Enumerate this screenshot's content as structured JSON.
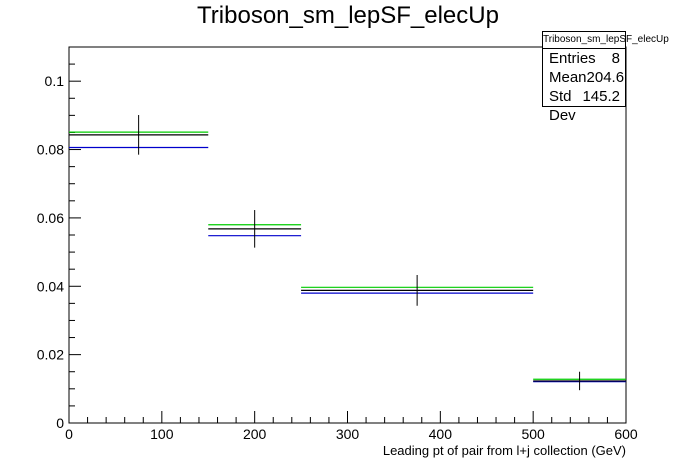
{
  "chart_data": {
    "type": "histogram",
    "title": "Triboson_sm_lepSF_elecUp",
    "xlabel": "Leading pt of pair from l+j collection (GeV)",
    "ylabel": "",
    "xlim": [
      0,
      600
    ],
    "ylim": [
      0,
      0.11
    ],
    "x_ticks": [
      "0",
      "100",
      "200",
      "300",
      "400",
      "500",
      "600"
    ],
    "y_ticks": [
      "0",
      "0.02",
      "0.04",
      "0.06",
      "0.08",
      "0.1"
    ],
    "bin_edges": [
      0,
      150,
      250,
      500,
      600
    ],
    "series": [
      {
        "values": [
          0.0843,
          0.0568,
          0.0388,
          0.0123
        ],
        "errors": [
          0.0058,
          0.0055,
          0.0045,
          0.0027
        ],
        "color": "#000000"
      },
      {
        "values": [
          0.0851,
          0.058,
          0.0397,
          0.0128
        ],
        "color": "#00cc00"
      },
      {
        "values": [
          0.0806,
          0.0548,
          0.038,
          0.0121
        ],
        "color": "#0000cc"
      }
    ],
    "stats": {
      "title": "Triboson_sm_lepSF_elecUp",
      "rows": [
        {
          "label": "Entries",
          "value": "8"
        },
        {
          "label": "Mean",
          "value": "204.6"
        },
        {
          "label": "Std Dev",
          "value": "145.2"
        }
      ]
    }
  }
}
